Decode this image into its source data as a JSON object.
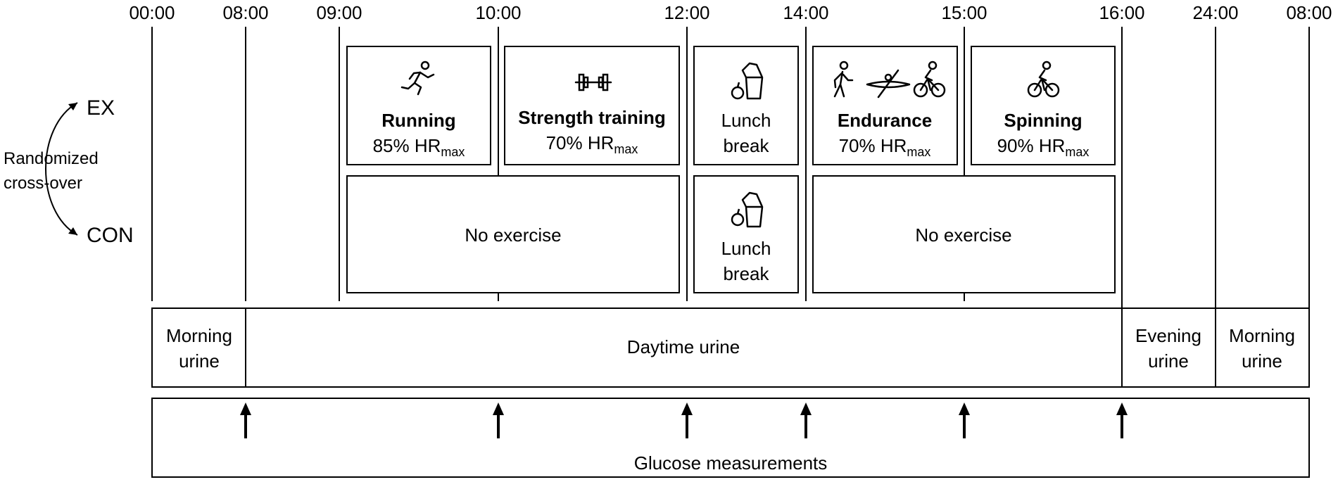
{
  "time_labels": [
    "00:00",
    "08:00",
    "09:00",
    "10:00",
    "12:00",
    "14:00",
    "15:00",
    "16:00",
    "24:00",
    "08:00"
  ],
  "conditions": {
    "ex": "EX",
    "con": "CON"
  },
  "randomization": {
    "line1": "Randomized",
    "line2": "cross-over"
  },
  "ex_boxes": [
    {
      "title": "Running",
      "intensity": "85% HR",
      "intensity_sub": "max",
      "icons": [
        "running-icon"
      ]
    },
    {
      "title": "Strength training",
      "intensity": "70% HR",
      "intensity_sub": "max",
      "icons": [
        "dumbbell-icon"
      ]
    },
    {
      "line1": "Lunch",
      "line2": "break",
      "icons": [
        "lunch-bag-apple-icon"
      ]
    },
    {
      "title": "Endurance",
      "intensity": "70% HR",
      "intensity_sub": "max",
      "icons": [
        "walking-icon",
        "kayak-icon",
        "cycling-icon"
      ]
    },
    {
      "title": "Spinning",
      "intensity": "90% HR",
      "intensity_sub": "max",
      "icons": [
        "cycling-icon"
      ]
    }
  ],
  "con_boxes": [
    {
      "label": "No exercise"
    },
    {
      "line1": "Lunch",
      "line2": "break",
      "icons": [
        "lunch-bag-apple-icon"
      ]
    },
    {
      "label": "No exercise"
    }
  ],
  "urine": [
    {
      "line1": "Morning",
      "line2": "urine"
    },
    {
      "label": "Daytime urine"
    },
    {
      "line1": "Evening",
      "line2": "urine"
    },
    {
      "line1": "Morning",
      "line2": "urine"
    }
  ],
  "glucose": {
    "label": "Glucose measurements",
    "arrow_count": 6
  }
}
